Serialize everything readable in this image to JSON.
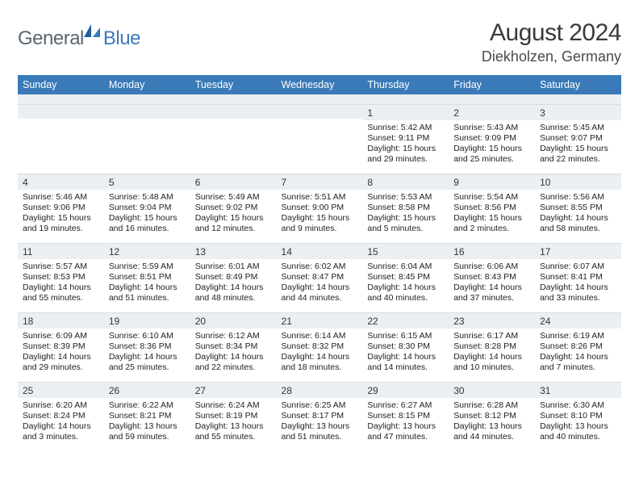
{
  "logo": {
    "textA": "General",
    "textB": "Blue"
  },
  "title": "August 2024",
  "location": "Diekholzen, Germany",
  "colors": {
    "headerBg": "#3a7ab8",
    "headerFg": "#ffffff",
    "dayNumBg": "#eceff2",
    "textDark": "#3a3a3a",
    "logoGray": "#5a6670",
    "logoBlue": "#3a7ab8"
  },
  "dayNames": [
    "Sunday",
    "Monday",
    "Tuesday",
    "Wednesday",
    "Thursday",
    "Friday",
    "Saturday"
  ],
  "weeks": [
    [
      null,
      null,
      null,
      null,
      {
        "n": "1",
        "sr": "5:42 AM",
        "ss": "9:11 PM",
        "dl": "15 hours and 29 minutes."
      },
      {
        "n": "2",
        "sr": "5:43 AM",
        "ss": "9:09 PM",
        "dl": "15 hours and 25 minutes."
      },
      {
        "n": "3",
        "sr": "5:45 AM",
        "ss": "9:07 PM",
        "dl": "15 hours and 22 minutes."
      }
    ],
    [
      {
        "n": "4",
        "sr": "5:46 AM",
        "ss": "9:06 PM",
        "dl": "15 hours and 19 minutes."
      },
      {
        "n": "5",
        "sr": "5:48 AM",
        "ss": "9:04 PM",
        "dl": "15 hours and 16 minutes."
      },
      {
        "n": "6",
        "sr": "5:49 AM",
        "ss": "9:02 PM",
        "dl": "15 hours and 12 minutes."
      },
      {
        "n": "7",
        "sr": "5:51 AM",
        "ss": "9:00 PM",
        "dl": "15 hours and 9 minutes."
      },
      {
        "n": "8",
        "sr": "5:53 AM",
        "ss": "8:58 PM",
        "dl": "15 hours and 5 minutes."
      },
      {
        "n": "9",
        "sr": "5:54 AM",
        "ss": "8:56 PM",
        "dl": "15 hours and 2 minutes."
      },
      {
        "n": "10",
        "sr": "5:56 AM",
        "ss": "8:55 PM",
        "dl": "14 hours and 58 minutes."
      }
    ],
    [
      {
        "n": "11",
        "sr": "5:57 AM",
        "ss": "8:53 PM",
        "dl": "14 hours and 55 minutes."
      },
      {
        "n": "12",
        "sr": "5:59 AM",
        "ss": "8:51 PM",
        "dl": "14 hours and 51 minutes."
      },
      {
        "n": "13",
        "sr": "6:01 AM",
        "ss": "8:49 PM",
        "dl": "14 hours and 48 minutes."
      },
      {
        "n": "14",
        "sr": "6:02 AM",
        "ss": "8:47 PM",
        "dl": "14 hours and 44 minutes."
      },
      {
        "n": "15",
        "sr": "6:04 AM",
        "ss": "8:45 PM",
        "dl": "14 hours and 40 minutes."
      },
      {
        "n": "16",
        "sr": "6:06 AM",
        "ss": "8:43 PM",
        "dl": "14 hours and 37 minutes."
      },
      {
        "n": "17",
        "sr": "6:07 AM",
        "ss": "8:41 PM",
        "dl": "14 hours and 33 minutes."
      }
    ],
    [
      {
        "n": "18",
        "sr": "6:09 AM",
        "ss": "8:39 PM",
        "dl": "14 hours and 29 minutes."
      },
      {
        "n": "19",
        "sr": "6:10 AM",
        "ss": "8:36 PM",
        "dl": "14 hours and 25 minutes."
      },
      {
        "n": "20",
        "sr": "6:12 AM",
        "ss": "8:34 PM",
        "dl": "14 hours and 22 minutes."
      },
      {
        "n": "21",
        "sr": "6:14 AM",
        "ss": "8:32 PM",
        "dl": "14 hours and 18 minutes."
      },
      {
        "n": "22",
        "sr": "6:15 AM",
        "ss": "8:30 PM",
        "dl": "14 hours and 14 minutes."
      },
      {
        "n": "23",
        "sr": "6:17 AM",
        "ss": "8:28 PM",
        "dl": "14 hours and 10 minutes."
      },
      {
        "n": "24",
        "sr": "6:19 AM",
        "ss": "8:26 PM",
        "dl": "14 hours and 7 minutes."
      }
    ],
    [
      {
        "n": "25",
        "sr": "6:20 AM",
        "ss": "8:24 PM",
        "dl": "14 hours and 3 minutes."
      },
      {
        "n": "26",
        "sr": "6:22 AM",
        "ss": "8:21 PM",
        "dl": "13 hours and 59 minutes."
      },
      {
        "n": "27",
        "sr": "6:24 AM",
        "ss": "8:19 PM",
        "dl": "13 hours and 55 minutes."
      },
      {
        "n": "28",
        "sr": "6:25 AM",
        "ss": "8:17 PM",
        "dl": "13 hours and 51 minutes."
      },
      {
        "n": "29",
        "sr": "6:27 AM",
        "ss": "8:15 PM",
        "dl": "13 hours and 47 minutes."
      },
      {
        "n": "30",
        "sr": "6:28 AM",
        "ss": "8:12 PM",
        "dl": "13 hours and 44 minutes."
      },
      {
        "n": "31",
        "sr": "6:30 AM",
        "ss": "8:10 PM",
        "dl": "13 hours and 40 minutes."
      }
    ]
  ],
  "labels": {
    "sunrise": "Sunrise: ",
    "sunset": "Sunset: ",
    "daylight": "Daylight: "
  }
}
